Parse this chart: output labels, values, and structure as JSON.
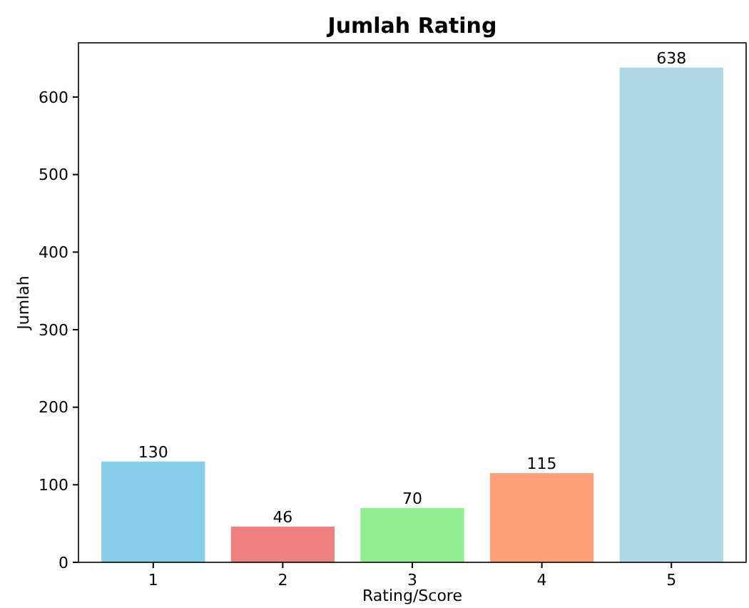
{
  "chart_data": {
    "type": "bar",
    "title": "Jumlah Rating",
    "xlabel": "Rating/Score",
    "ylabel": "Jumlah",
    "categories": [
      "1",
      "2",
      "3",
      "4",
      "5"
    ],
    "values": [
      130,
      46,
      70,
      115,
      638
    ],
    "colors": [
      "#87ceeb",
      "#f08080",
      "#90ee90",
      "#ffa07a",
      "#add8e6"
    ],
    "ylim": [
      0,
      669.9
    ],
    "yticks": [
      0,
      100,
      200,
      300,
      400,
      500,
      600
    ],
    "data_labels": true
  }
}
